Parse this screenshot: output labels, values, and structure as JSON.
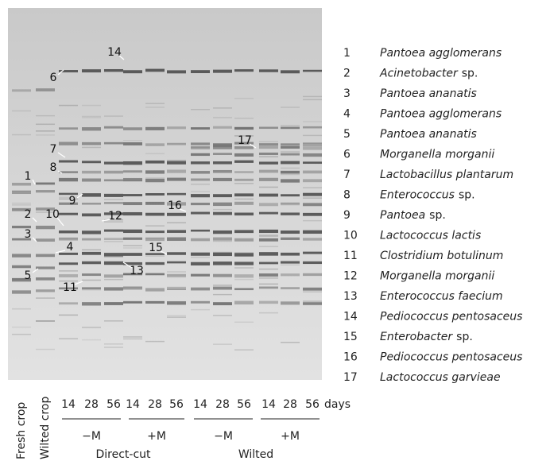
{
  "gel": {
    "band_labels": [
      "1",
      "2",
      "3",
      "4",
      "5",
      "6",
      "7",
      "8",
      "9",
      "10",
      "11",
      "12",
      "13",
      "14",
      "15",
      "16",
      "17"
    ],
    "lanes": [
      "Fresh crop",
      "Wilted crop"
    ],
    "days": [
      "14",
      "28",
      "56",
      "14",
      "28",
      "56",
      "14",
      "28",
      "56",
      "14",
      "28",
      "56"
    ],
    "days_unit": "days",
    "treatments": [
      "−M",
      "+M",
      "−M",
      "+M"
    ],
    "groups": [
      "Direct-cut",
      "Wilted"
    ]
  },
  "legend": [
    {
      "number": "1",
      "name": "Pantoea agglomerans"
    },
    {
      "number": "2",
      "name": "Acinetobacter",
      "suffix": "sp."
    },
    {
      "number": "3",
      "name": "Pantoea ananatis"
    },
    {
      "number": "4",
      "name": "Pantoea agglomerans"
    },
    {
      "number": "5",
      "name": "Pantoea ananatis"
    },
    {
      "number": "6",
      "name": "Morganella morganii"
    },
    {
      "number": "7",
      "name": "Lactobacillus plantarum"
    },
    {
      "number": "8",
      "name": "Enterococcus",
      "suffix": "sp."
    },
    {
      "number": "9",
      "name": "Pantoea",
      "suffix": "sp."
    },
    {
      "number": "10",
      "name": "Lactococcus lactis"
    },
    {
      "number": "11",
      "name": "Clostridium botulinum"
    },
    {
      "number": "12",
      "name": "Morganella morganii"
    },
    {
      "number": "13",
      "name": "Enterococcus faecium"
    },
    {
      "number": "14",
      "name": "Pediococcus pentosaceus"
    },
    {
      "number": "15",
      "name": "Enterobacter",
      "suffix": "sp."
    },
    {
      "number": "16",
      "name": "Pediococcus pentosaceus"
    },
    {
      "number": "17",
      "name": "Lactococcus garvieae"
    }
  ]
}
